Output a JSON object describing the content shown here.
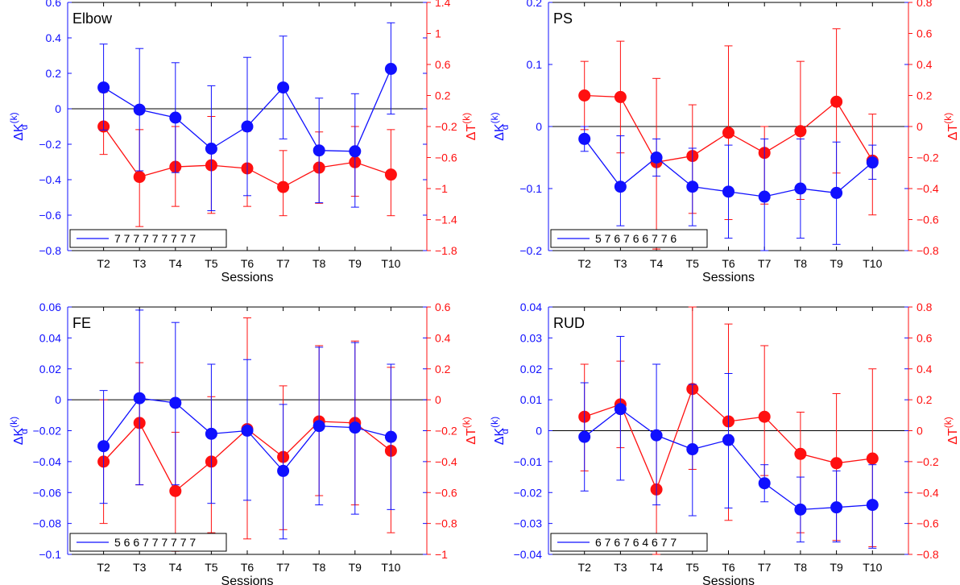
{
  "colors": {
    "left": "#1010ff",
    "right": "#ff1010",
    "zero": "#000000"
  },
  "chart_data": [
    {
      "type": "line",
      "title": "Elbow",
      "categories": [
        "T2",
        "T3",
        "T4",
        "T5",
        "T6",
        "T7",
        "T8",
        "T9",
        "T10"
      ],
      "xlabel": "Sessions",
      "ylabel_left": "ΔK",
      "ylabel_left_sub": "d",
      "ylabel_right": "ΔT",
      "ylabel_sup": "(k)",
      "legend_text": "7  7  7  7  7  7  7  7  7",
      "left_axis": {
        "ylim": [
          -0.8,
          0.6
        ],
        "ticks": [
          -0.8,
          -0.6,
          -0.4,
          -0.2,
          0,
          0.2,
          0.4,
          0.6
        ],
        "tick_labels": [
          "−0.8",
          "−0.6",
          "−0.4",
          "−0.2",
          "0",
          "0.2",
          "0.4",
          "0.6"
        ]
      },
      "right_axis": {
        "ylim": [
          -1.8,
          1.4
        ],
        "ticks": [
          -1.8,
          -1.4,
          -1,
          -0.6,
          -0.2,
          0.2,
          0.6,
          1,
          1.4
        ],
        "tick_labels": [
          "−1.8",
          "−1.4",
          "−1",
          "−0.6",
          "−0.2",
          "0.2",
          "0.6",
          "1",
          "1.4"
        ]
      },
      "series_left": {
        "name": "ΔK_d",
        "values": [
          0.12,
          -0.005,
          -0.05,
          -0.225,
          -0.1,
          0.12,
          -0.235,
          -0.24,
          0.225
        ],
        "err_low": [
          -0.12,
          -0.35,
          -0.36,
          -0.575,
          -0.49,
          -0.17,
          -0.53,
          -0.555,
          -0.03
        ],
        "err_high": [
          0.365,
          0.34,
          0.26,
          0.13,
          0.29,
          0.41,
          0.06,
          0.085,
          0.485
        ]
      },
      "series_right": {
        "name": "ΔT",
        "values": [
          -0.2,
          -0.85,
          -0.72,
          -0.7,
          -0.74,
          -0.98,
          -0.73,
          -0.66,
          -0.82
        ],
        "err_low": [
          -0.56,
          -1.49,
          -1.23,
          -1.32,
          -1.23,
          -1.35,
          -1.19,
          -1.1,
          -1.35
        ],
        "err_high": [
          0.24,
          -0.24,
          -0.2,
          -0.07,
          -0.26,
          -0.51,
          -0.27,
          -0.2,
          -0.24
        ]
      }
    },
    {
      "type": "line",
      "title": "PS",
      "categories": [
        "T2",
        "T3",
        "T4",
        "T5",
        "T6",
        "T7",
        "T8",
        "T9",
        "T10"
      ],
      "xlabel": "Sessions",
      "ylabel_left": "ΔK",
      "ylabel_left_sub": "d",
      "ylabel_right": "ΔT",
      "ylabel_sup": "(k)",
      "legend_text": "5  7  6  7  6  6  7  7  6",
      "left_axis": {
        "ylim": [
          -0.2,
          0.2
        ],
        "ticks": [
          -0.2,
          -0.1,
          0,
          0.1,
          0.2
        ],
        "tick_labels": [
          "−0.2",
          "−0.1",
          "0",
          "0.1",
          "0.2"
        ]
      },
      "right_axis": {
        "ylim": [
          -0.8,
          0.8
        ],
        "ticks": [
          -0.8,
          -0.6,
          -0.4,
          -0.2,
          0,
          0.2,
          0.4,
          0.6,
          0.8
        ],
        "tick_labels": [
          "−0.8",
          "−0.6",
          "−0.4",
          "−0.2",
          "0",
          "0.2",
          "0.4",
          "0.6",
          "0.8"
        ]
      },
      "series_left": {
        "name": "ΔK_d",
        "values": [
          -0.02,
          -0.097,
          -0.05,
          -0.097,
          -0.105,
          -0.113,
          -0.1,
          -0.107,
          -0.058
        ],
        "err_low": [
          -0.04,
          -0.16,
          -0.08,
          -0.16,
          -0.18,
          -0.2,
          -0.18,
          -0.19,
          -0.085
        ],
        "err_high": [
          0.0,
          -0.015,
          -0.02,
          -0.035,
          -0.03,
          -0.02,
          -0.02,
          -0.025,
          -0.03
        ]
      },
      "series_right": {
        "name": "ΔT",
        "values": [
          0.2,
          0.19,
          -0.23,
          -0.19,
          -0.04,
          -0.17,
          -0.03,
          0.16,
          -0.22
        ],
        "err_low": [
          -0.02,
          -0.17,
          -0.79,
          -0.56,
          -0.6,
          -0.5,
          -0.47,
          -0.3,
          -0.57
        ],
        "err_high": [
          0.42,
          0.55,
          0.31,
          0.14,
          0.52,
          0.0,
          0.42,
          0.63,
          0.08
        ]
      }
    },
    {
      "type": "line",
      "title": "FE",
      "categories": [
        "T2",
        "T3",
        "T4",
        "T5",
        "T6",
        "T7",
        "T8",
        "T9",
        "T10"
      ],
      "xlabel": "Sessions",
      "ylabel_left": "ΔK",
      "ylabel_left_sub": "d",
      "ylabel_right": "ΔT",
      "ylabel_sup": "(k)",
      "legend_text": "5  6  6  7  7  7  7  7  7",
      "left_axis": {
        "ylim": [
          -0.1,
          0.06
        ],
        "ticks": [
          -0.1,
          -0.08,
          -0.06,
          -0.04,
          -0.02,
          0,
          0.02,
          0.04,
          0.06
        ],
        "tick_labels": [
          "−0.1",
          "−0.08",
          "−0.06",
          "−0.04",
          "−0.02",
          "0",
          "0.02",
          "0.04",
          "0.06"
        ]
      },
      "right_axis": {
        "ylim": [
          -1,
          0.6
        ],
        "ticks": [
          -1,
          -0.8,
          -0.6,
          -0.4,
          -0.2,
          0,
          0.2,
          0.4,
          0.6
        ],
        "tick_labels": [
          "−1",
          "−0.8",
          "−0.6",
          "−0.4",
          "−0.2",
          "0",
          "0.2",
          "0.4",
          "0.6"
        ]
      },
      "series_left": {
        "name": "ΔK_d",
        "values": [
          -0.03,
          0.001,
          -0.002,
          -0.022,
          -0.02,
          -0.046,
          -0.017,
          -0.018,
          -0.024
        ],
        "err_low": [
          -0.067,
          -0.055,
          -0.055,
          -0.067,
          -0.065,
          -0.09,
          -0.068,
          -0.074,
          -0.071
        ],
        "err_high": [
          0.006,
          0.058,
          0.05,
          0.023,
          0.026,
          -0.003,
          0.034,
          0.037,
          0.023
        ]
      },
      "series_right": {
        "name": "ΔT",
        "values": [
          -0.4,
          -0.15,
          -0.59,
          -0.4,
          -0.19,
          -0.37,
          -0.14,
          -0.15,
          -0.33
        ],
        "err_low": [
          -0.8,
          -0.55,
          -0.98,
          -0.86,
          -0.9,
          -0.84,
          -0.62,
          -0.68,
          -0.86
        ],
        "err_high": [
          0.0,
          0.24,
          -0.21,
          0.02,
          0.53,
          0.09,
          0.35,
          0.38,
          0.21
        ]
      }
    },
    {
      "type": "line",
      "title": "RUD",
      "categories": [
        "T2",
        "T3",
        "T4",
        "T5",
        "T6",
        "T7",
        "T8",
        "T9",
        "T10"
      ],
      "xlabel": "Sessions",
      "ylabel_left": "ΔK",
      "ylabel_left_sub": "d",
      "ylabel_right": "ΔT",
      "ylabel_sup": "(k)",
      "legend_text": "6  7  6  7  6  4  6  7  7",
      "left_axis": {
        "ylim": [
          -0.04,
          0.04
        ],
        "ticks": [
          -0.04,
          -0.03,
          -0.02,
          -0.01,
          0,
          0.01,
          0.02,
          0.03,
          0.04
        ],
        "tick_labels": [
          "−0.04",
          "−0.03",
          "−0.02",
          "−0.01",
          "0",
          "0.01",
          "0.02",
          "0.03",
          "0.04"
        ]
      },
      "right_axis": {
        "ylim": [
          -0.8,
          0.8
        ],
        "ticks": [
          -0.8,
          -0.6,
          -0.4,
          -0.2,
          0,
          0.2,
          0.4,
          0.6,
          0.8
        ],
        "tick_labels": [
          "−0.8",
          "−0.6",
          "−0.4",
          "−0.2",
          "0",
          "0.2",
          "0.4",
          "0.6",
          "0.8"
        ]
      },
      "series_left": {
        "name": "ΔK_d",
        "values": [
          -0.002,
          0.007,
          -0.0015,
          -0.006,
          -0.003,
          -0.017,
          -0.0255,
          -0.0248,
          -0.024
        ],
        "err_low": [
          -0.0195,
          -0.016,
          -0.024,
          -0.0275,
          -0.025,
          -0.023,
          -0.036,
          -0.036,
          -0.038
        ],
        "err_high": [
          0.0155,
          0.0305,
          0.0215,
          0.015,
          0.0185,
          -0.011,
          -0.015,
          -0.013,
          -0.011
        ]
      },
      "series_right": {
        "name": "ΔT",
        "values": [
          0.09,
          0.17,
          -0.38,
          0.27,
          0.06,
          0.09,
          -0.15,
          -0.21,
          -0.18
        ],
        "err_low": [
          -0.26,
          -0.11,
          -0.8,
          -0.25,
          -0.58,
          -0.29,
          -0.66,
          -0.71,
          -0.75
        ],
        "err_high": [
          0.43,
          0.45,
          0.0,
          0.8,
          0.69,
          0.55,
          0.12,
          0.24,
          0.4
        ]
      }
    }
  ]
}
